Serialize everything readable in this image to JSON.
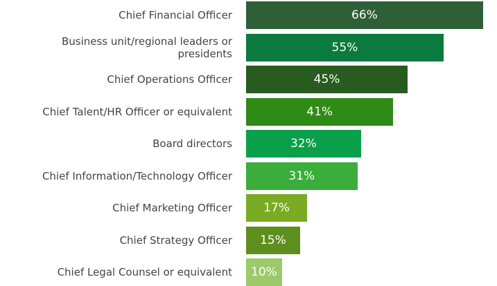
{
  "chart_data": {
    "type": "bar",
    "orientation": "horizontal",
    "categories": [
      "Chief Financial Officer",
      "Business unit/regional leaders or presidents",
      "Chief Operations Officer",
      "Chief Talent/HR Officer or equivalent",
      "Board directors",
      "Chief Information/Technology Officer",
      "Chief Marketing Officer",
      "Chief Strategy Officer",
      "Chief Legal Counsel or equivalent"
    ],
    "values": [
      66,
      55,
      45,
      41,
      32,
      31,
      17,
      15,
      10
    ],
    "value_labels": [
      "66%",
      "55%",
      "45%",
      "41%",
      "32%",
      "31%",
      "17%",
      "15%",
      "10%"
    ],
    "colors": [
      "#2f5f37",
      "#0b7a3e",
      "#285b1f",
      "#2e8b16",
      "#0aa04a",
      "#3aad3a",
      "#7aab24",
      "#5e8e1e",
      "#9cc96a"
    ]
  }
}
